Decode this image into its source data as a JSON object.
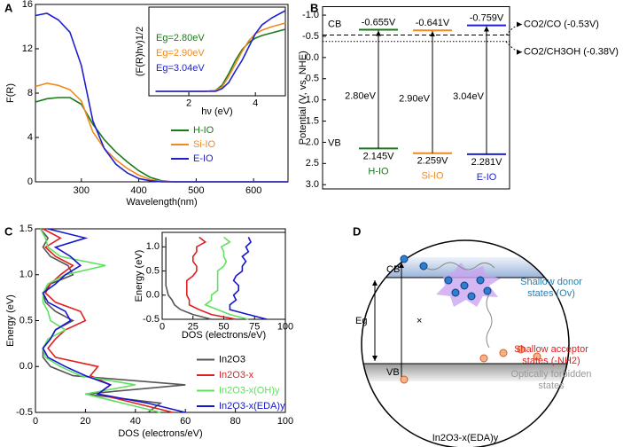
{
  "chart_data": [
    {
      "type": "line",
      "label": "A",
      "xlabel": "Wavelength(nm)",
      "ylabel": "F(R)",
      "x": [
        220,
        240,
        260,
        280,
        300,
        320,
        340,
        360,
        380,
        400,
        420,
        440,
        460,
        500,
        550,
        600,
        660
      ],
      "xlim": [
        220,
        660
      ],
      "xticks": [
        300,
        400,
        500,
        600
      ],
      "ylim": [
        0,
        16
      ],
      "yticks": [
        0,
        4,
        8,
        12,
        16
      ],
      "legend": "lower right",
      "series": [
        {
          "name": "H-IO",
          "color": "#1a7a1a",
          "values": [
            7.2,
            7.5,
            7.6,
            7.6,
            7.0,
            5.2,
            3.8,
            2.7,
            1.8,
            1.0,
            0.4,
            0.1,
            0,
            0,
            0,
            0,
            0
          ]
        },
        {
          "name": "Si-IO",
          "color": "#f08a1e",
          "values": [
            8.6,
            8.9,
            8.7,
            8.3,
            7.3,
            4.5,
            3.0,
            2.0,
            1.2,
            0.6,
            0.2,
            0.05,
            0,
            0,
            0,
            0,
            0
          ]
        },
        {
          "name": "E-IO",
          "color": "#1f1fcf",
          "values": [
            15.0,
            15.2,
            14.6,
            13.5,
            10.5,
            5.5,
            3.0,
            1.6,
            0.8,
            0.3,
            0.1,
            0,
            0,
            0,
            0,
            0,
            0
          ]
        }
      ],
      "inset": {
        "type": "line",
        "xlabel": "hν (eV)",
        "ylabel": "(F(R)hν)1/2",
        "x": [
          1,
          1.5,
          2,
          2.5,
          2.8,
          3.0,
          3.2,
          3.4,
          3.6,
          3.8,
          4.0,
          4.2,
          4.5,
          4.9
        ],
        "xlim": [
          0.8,
          4.9
        ],
        "xticks": [
          2,
          4
        ],
        "ylim": [
          0,
          10
        ],
        "annotations": [
          {
            "text": "Eg=2.80eV",
            "color": "#1a7a1a"
          },
          {
            "text": "Eg=2.90eV",
            "color": "#f08a1e"
          },
          {
            "text": "Eg=3.04eV",
            "color": "#1f1fcf"
          }
        ],
        "series": [
          {
            "color": "#1a7a1a",
            "values": [
              0.5,
              0.5,
              0.5,
              0.5,
              0.6,
              1.2,
              2.5,
              4.0,
              5.2,
              6.0,
              6.5,
              6.8,
              7.1,
              7.5
            ]
          },
          {
            "color": "#f08a1e",
            "values": [
              0.5,
              0.5,
              0.5,
              0.5,
              0.6,
              1.0,
              2.2,
              3.6,
              5.0,
              6.2,
              7.0,
              7.4,
              7.8,
              8.2
            ]
          },
          {
            "color": "#1f1fcf",
            "values": [
              0.5,
              0.5,
              0.5,
              0.5,
              0.5,
              0.8,
              1.5,
              2.8,
              4.0,
              5.5,
              7.0,
              8.0,
              8.8,
              9.6
            ]
          }
        ]
      }
    },
    {
      "type": "band",
      "label": "B",
      "ylabel": "Potential (V, vs. NHE)",
      "ylim": [
        -1.2,
        3.1
      ],
      "y_inverted": true,
      "yticks": [
        {
          "value": -1,
          "label": "-1.0"
        },
        {
          "value": -0.5,
          "label": "-0.5"
        },
        {
          "value": 0,
          "label": "0.0"
        },
        {
          "value": 0.5,
          "label": "0.5"
        },
        {
          "value": 1,
          "label": "1.0"
        },
        {
          "value": 1.5,
          "label": "1.5"
        },
        {
          "value": 2,
          "label": "2.0"
        },
        {
          "value": 2.5,
          "label": "2.5"
        },
        {
          "value": 3,
          "label": "3.0"
        }
      ],
      "band_labels": [
        "CB",
        "VB"
      ],
      "categories": [
        "H-IO",
        "Si-IO",
        "E-IO"
      ],
      "colors": [
        "#1a7a1a",
        "#f08a1e",
        "#1f1fcf"
      ],
      "cb": [
        -0.655,
        -0.641,
        -0.759
      ],
      "cb_labels": [
        "-0.655V",
        "-0.641V",
        "-0.759V"
      ],
      "vb": [
        2.145,
        2.259,
        2.281
      ],
      "vb_labels": [
        "2.145V",
        "2.259V",
        "2.281V"
      ],
      "gaps": [
        2.8,
        2.9,
        3.04
      ],
      "gap_labels": [
        "2.80eV",
        "2.90eV",
        "3.04eV"
      ],
      "refs": [
        {
          "value": -0.53,
          "label": "CO2/CO (-0.53V)",
          "style": "dashed"
        },
        {
          "value": -0.38,
          "label": "CO2/CH3OH (-0.38V)",
          "style": "dotted"
        }
      ]
    },
    {
      "type": "line",
      "label": "C",
      "orientation": "horizontal",
      "xlabel": "Energy (eV)",
      "ylabel": "DOS (electrons/eV)",
      "x": [
        -0.5,
        -0.4,
        -0.3,
        -0.2,
        -0.1,
        0,
        0.1,
        0.2,
        0.3,
        0.4,
        0.5,
        0.6,
        0.7,
        0.8,
        0.9,
        1,
        1.1,
        1.2,
        1.3,
        1.4,
        1.5
      ],
      "xlim": [
        -0.5,
        1.5
      ],
      "xticks": [
        {
          "value": -0.5,
          "label": "-0.5"
        },
        {
          "value": 0,
          "label": "0.0"
        },
        {
          "value": 0.5,
          "label": "0.5"
        },
        {
          "value": 1,
          "label": "1.0"
        },
        {
          "value": 1.5,
          "label": "1.5"
        }
      ],
      "ylim": [
        0,
        100
      ],
      "yticks": [
        0,
        20,
        40,
        60,
        80,
        100
      ],
      "legend": "lower right",
      "series": [
        {
          "name": "In2O3",
          "color": "#555555",
          "values": [
            45,
            50,
            20,
            60,
            15,
            6,
            3,
            3,
            6,
            8,
            15,
            8,
            4,
            3,
            6,
            15,
            13,
            6,
            3,
            5,
            2
          ]
        },
        {
          "name": "In2O3-x",
          "color": "#e02020",
          "values": [
            55,
            40,
            25,
            30,
            22,
            25,
            8,
            5,
            8,
            12,
            20,
            18,
            8,
            4,
            6,
            10,
            15,
            8,
            4,
            10,
            3
          ]
        },
        {
          "name": "In2O3-x(OH)y",
          "color": "#5fe05f",
          "values": [
            50,
            35,
            20,
            40,
            18,
            10,
            4,
            3,
            5,
            12,
            6,
            5,
            3,
            3,
            5,
            12,
            28,
            10,
            5,
            4,
            2
          ]
        },
        {
          "name": "In2O3-x(EDA)y",
          "color": "#1515d0",
          "values": [
            60,
            45,
            25,
            30,
            20,
            12,
            5,
            3,
            6,
            8,
            14,
            12,
            5,
            3,
            8,
            12,
            18,
            14,
            8,
            20,
            5
          ]
        }
      ],
      "inset": {
        "type": "line",
        "orientation": "horizontal",
        "xlabel": "Energy (eV)",
        "ylabel": "DOS (electrons/eV)",
        "x": [
          -0.5,
          -0.4,
          -0.3,
          -0.2,
          -0.1,
          0,
          0.1,
          0.2,
          0.3,
          0.4,
          0.5,
          0.6,
          0.7,
          0.8,
          0.9,
          1,
          1.1,
          1.2
        ],
        "xlim": [
          -0.5,
          1.3
        ],
        "xticks": [
          {
            "value": -0.5,
            "label": "-0.5"
          },
          {
            "value": 0,
            "label": "0.0"
          },
          {
            "value": 0.5,
            "label": "0.5"
          },
          {
            "value": 1,
            "label": "1.0"
          }
        ],
        "ylim": [
          0,
          100
        ],
        "yticks": [
          0,
          25,
          50,
          75,
          100
        ],
        "series": [
          {
            "color": "#555555",
            "values": [
              40,
              25,
              15,
              10,
              8,
              5,
              4,
              3,
              3,
              3,
              3,
              3,
              3,
              3,
              3,
              3,
              3,
              3
            ]
          },
          {
            "color": "#e02020",
            "values": [
              60,
              40,
              30,
              22,
              22,
              20,
              20,
              20,
              20,
              25,
              28,
              28,
              25,
              25,
              28,
              28,
              35,
              30
            ]
          },
          {
            "color": "#5fe05f",
            "values": [
              70,
              55,
              45,
              35,
              40,
              40,
              45,
              45,
              45,
              45,
              45,
              50,
              52,
              50,
              50,
              48,
              55,
              50
            ]
          },
          {
            "color": "#1515d0",
            "values": [
              85,
              70,
              55,
              55,
              60,
              58,
              62,
              62,
              58,
              60,
              65,
              65,
              68,
              65,
              70,
              68,
              72,
              70
            ]
          }
        ]
      }
    }
  ],
  "diagram": {
    "label": "D",
    "cb": "CB",
    "vb": "VB",
    "gap": "Eg",
    "forbidden_mark": "×",
    "donor": [
      "Shallow donor",
      "states (Ov)"
    ],
    "acceptor": [
      "Shallow acceptor",
      "states (-NH2)"
    ],
    "forbidden": [
      "Optically forbidden",
      "states"
    ],
    "caption": "In2O3-x(EDA)y"
  }
}
